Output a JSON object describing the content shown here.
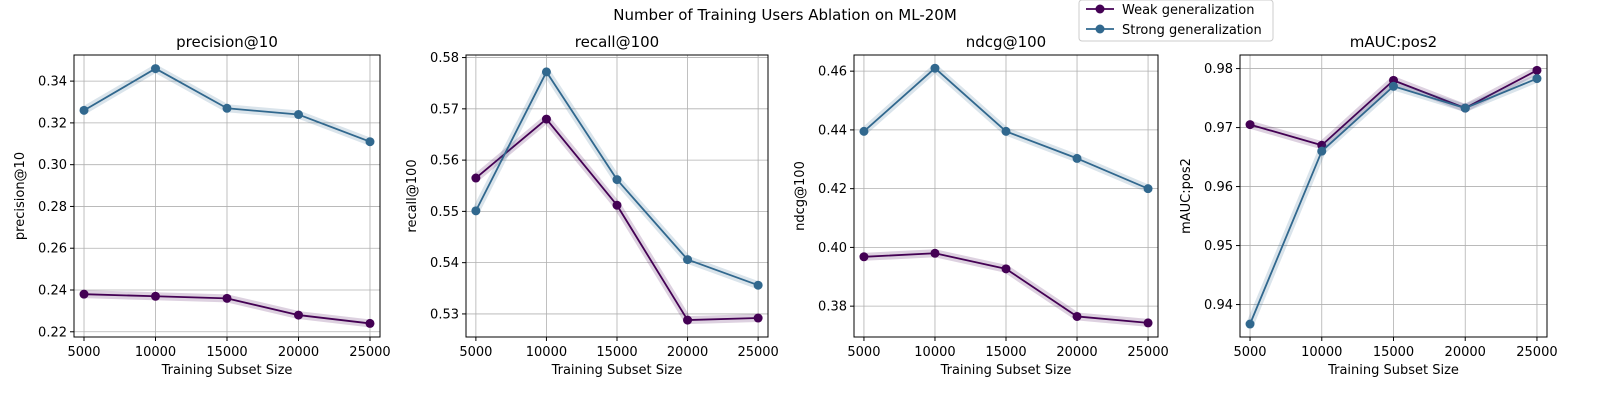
{
  "figure": {
    "suptitle": "Number of Training Users Ablation on ML-20M",
    "legend": {
      "placement": "upper center",
      "items": [
        {
          "label": "Weak generalization",
          "color": "#440154"
        },
        {
          "label": "Strong generalization",
          "color": "#31688e"
        }
      ]
    }
  },
  "chart_data": [
    {
      "type": "line",
      "title": "precision@10",
      "xlabel": "Training Subset Size",
      "ylabel": "precision@10",
      "x": [
        5000,
        10000,
        15000,
        20000,
        25000
      ],
      "xticks": [
        5000,
        10000,
        15000,
        20000,
        25000
      ],
      "xlim": [
        4300,
        25700
      ],
      "ylim": [
        0.2175,
        0.3525
      ],
      "yticks": [
        0.22,
        0.24,
        0.26,
        0.28,
        0.3,
        0.32,
        0.34
      ],
      "ytick_labels": [
        "0.22",
        "0.24",
        "0.26",
        "0.28",
        "0.30",
        "0.32",
        "0.34"
      ],
      "grid": true,
      "series": [
        {
          "name": "Weak generalization",
          "values": [
            0.238,
            0.237,
            0.236,
            0.228,
            0.224
          ]
        },
        {
          "name": "Strong generalization",
          "values": [
            0.326,
            0.346,
            0.327,
            0.324,
            0.311
          ]
        }
      ]
    },
    {
      "type": "line",
      "title": "recall@100",
      "xlabel": "Training Subset Size",
      "ylabel": "recall@100",
      "x": [
        5000,
        10000,
        15000,
        20000,
        25000
      ],
      "xticks": [
        5000,
        10000,
        15000,
        20000,
        25000
      ],
      "xlim": [
        4300,
        25700
      ],
      "ylim": [
        0.5255,
        0.5805
      ],
      "yticks": [
        0.53,
        0.54,
        0.55,
        0.56,
        0.57,
        0.58
      ],
      "ytick_labels": [
        "0.53",
        "0.54",
        "0.55",
        "0.56",
        "0.57",
        "0.58"
      ],
      "grid": true,
      "series": [
        {
          "name": "Weak generalization",
          "values": [
            0.5565,
            0.568,
            0.5512,
            0.5288,
            0.5292
          ]
        },
        {
          "name": "Strong generalization",
          "values": [
            0.5501,
            0.5772,
            0.5562,
            0.5406,
            0.5356
          ]
        }
      ]
    },
    {
      "type": "line",
      "title": "ndcg@100",
      "xlabel": "Training Subset Size",
      "ylabel": "ndcg@100",
      "x": [
        5000,
        10000,
        15000,
        20000,
        25000
      ],
      "xticks": [
        5000,
        10000,
        15000,
        20000,
        25000
      ],
      "xlim": [
        4300,
        25700
      ],
      "ylim": [
        0.3695,
        0.4655
      ],
      "yticks": [
        0.38,
        0.4,
        0.42,
        0.44,
        0.46
      ],
      "ytick_labels": [
        "0.38",
        "0.40",
        "0.42",
        "0.44",
        "0.46"
      ],
      "grid": true,
      "series": [
        {
          "name": "Weak generalization",
          "values": [
            0.3968,
            0.398,
            0.3927,
            0.3765,
            0.3743
          ]
        },
        {
          "name": "Strong generalization",
          "values": [
            0.4395,
            0.461,
            0.4395,
            0.4303,
            0.42
          ]
        }
      ]
    },
    {
      "type": "line",
      "title": "mAUC:pos2",
      "xlabel": "Training Subset Size",
      "ylabel": "mAUC:pos2",
      "x": [
        5000,
        10000,
        15000,
        20000,
        25000
      ],
      "xticks": [
        5000,
        10000,
        15000,
        20000,
        25000
      ],
      "xlim": [
        4300,
        25700
      ],
      "ylim": [
        0.9345,
        0.9823
      ],
      "yticks": [
        0.94,
        0.95,
        0.96,
        0.97,
        0.98
      ],
      "ytick_labels": [
        "0.94",
        "0.95",
        "0.96",
        "0.97",
        "0.98"
      ],
      "grid": true,
      "series": [
        {
          "name": "Weak generalization",
          "values": [
            0.9705,
            0.967,
            0.978,
            0.9733,
            0.9797
          ]
        },
        {
          "name": "Strong generalization",
          "values": [
            0.9367,
            0.966,
            0.977,
            0.9733,
            0.9783
          ]
        }
      ]
    }
  ]
}
